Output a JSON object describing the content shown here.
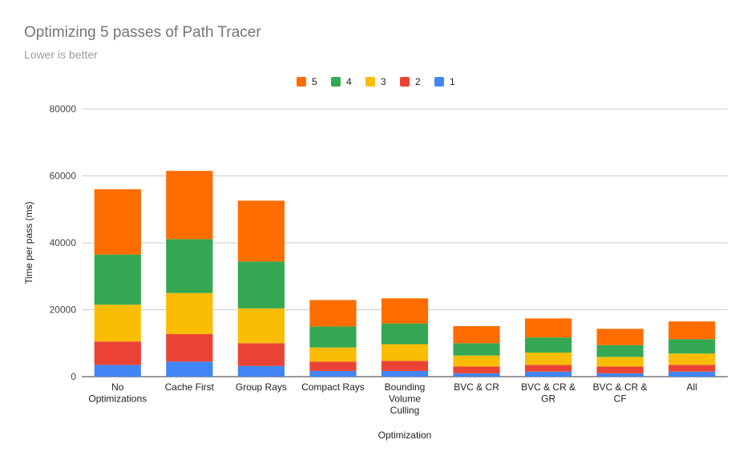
{
  "chart_data": {
    "type": "bar",
    "stacked": true,
    "title": "Optimizing 5 passes of Path Tracer",
    "subtitle": "Lower is better",
    "xlabel": "Optimization",
    "ylabel": "Time per pass (ms)",
    "ylim": [
      0,
      80000
    ],
    "yticks": [
      "0",
      "20000",
      "40000",
      "60000",
      "80000"
    ],
    "grid": true,
    "legend_position": "top",
    "categories": [
      "No Optimizations",
      "Cache First",
      "Group Rays",
      "Compact Rays",
      "Bounding Volume Culling",
      "BVC & CR",
      "BVC & CR & GR",
      "BVC & CR & CF",
      "All"
    ],
    "series": [
      {
        "name": "1",
        "color": "#4285f4",
        "values": [
          3500,
          4500,
          3200,
          1700,
          1700,
          1000,
          1500,
          1000,
          1500
        ]
      },
      {
        "name": "2",
        "color": "#ea4335",
        "values": [
          7000,
          8200,
          6800,
          2800,
          3000,
          2000,
          2000,
          2000,
          2000
        ]
      },
      {
        "name": "3",
        "color": "#fbbc04",
        "values": [
          11000,
          12300,
          10400,
          4200,
          5000,
          3300,
          3700,
          2900,
          3400
        ]
      },
      {
        "name": "4",
        "color": "#34a853",
        "values": [
          15000,
          16100,
          14000,
          6300,
          6200,
          3700,
          4500,
          3500,
          4300
        ]
      },
      {
        "name": "5",
        "color": "#ff6d01",
        "values": [
          19500,
          20400,
          18200,
          7900,
          7500,
          5100,
          5700,
          4900,
          5300
        ]
      }
    ]
  }
}
